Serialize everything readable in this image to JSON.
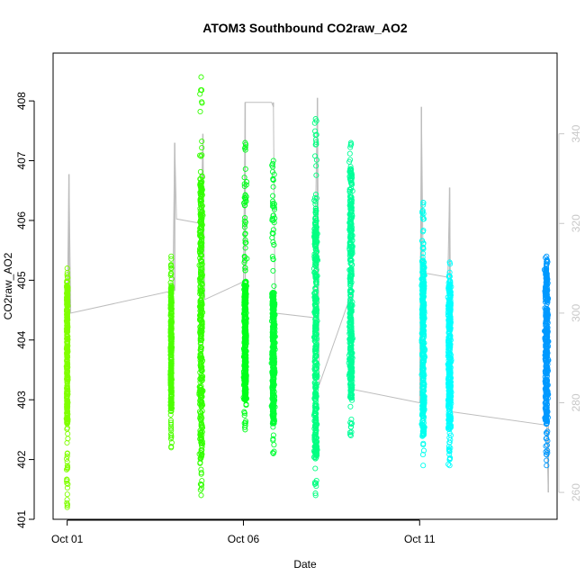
{
  "chart_data": {
    "type": "scatter",
    "title": "ATOM3 Southbound CO2raw_AO2",
    "xlabel": "Date",
    "ylabel": "CO2raw_AO2",
    "x_ticks": [
      {
        "day": 1,
        "label": "Oct 01"
      },
      {
        "day": 6,
        "label": "Oct 06"
      },
      {
        "day": 11,
        "label": "Oct 11"
      }
    ],
    "xlim": [
      0.6,
      14.9
    ],
    "ylim": [
      401.0,
      408.8
    ],
    "y_ticks": [
      401,
      402,
      403,
      404,
      405,
      406,
      407,
      408
    ],
    "y2lim": [
      254.0,
      358.0
    ],
    "y2_ticks": [
      260,
      280,
      300,
      320,
      340
    ],
    "y2_color": "#c8c8c8",
    "secondary_series": {
      "type": "line",
      "axis": "right",
      "color": "#bdbdbd",
      "points": [
        {
          "x": 1.0,
          "y": 299.7
        },
        {
          "x": 1.05,
          "y": 331.0
        },
        {
          "x": 1.1,
          "y": 300.0
        },
        {
          "x": 4.0,
          "y": 305.0
        },
        {
          "x": 4.05,
          "y": 338.0
        },
        {
          "x": 4.1,
          "y": 321.0
        },
        {
          "x": 4.8,
          "y": 320.0
        },
        {
          "x": 4.85,
          "y": 340.0
        },
        {
          "x": 4.9,
          "y": 303.0
        },
        {
          "x": 6.0,
          "y": 307.0
        },
        {
          "x": 6.05,
          "y": 347.0
        },
        {
          "x": 6.1,
          "y": 347.0
        },
        {
          "x": 6.8,
          "y": 347.0
        },
        {
          "x": 6.85,
          "y": 346.0
        },
        {
          "x": 6.9,
          "y": 300.0
        },
        {
          "x": 8.0,
          "y": 299.0
        },
        {
          "x": 8.1,
          "y": 348.0
        },
        {
          "x": 8.15,
          "y": 284.0
        },
        {
          "x": 9.0,
          "y": 303.0
        },
        {
          "x": 9.05,
          "y": 304.0
        },
        {
          "x": 9.1,
          "y": 283.0
        },
        {
          "x": 11.0,
          "y": 280.0
        },
        {
          "x": 11.05,
          "y": 346.0
        },
        {
          "x": 11.1,
          "y": 309.0
        },
        {
          "x": 11.8,
          "y": 308.0
        },
        {
          "x": 11.85,
          "y": 328.0
        },
        {
          "x": 11.9,
          "y": 278.0
        },
        {
          "x": 14.6,
          "y": 275.0
        },
        {
          "x": 14.65,
          "y": 260.0
        }
      ]
    },
    "series": [
      {
        "x": 1.0,
        "x_spread": 0.03,
        "ymin": 401.2,
        "ymax": 405.2,
        "core_min": 402.6,
        "core_max": 405.0,
        "color": "#80ff00"
      },
      {
        "x": 3.95,
        "x_spread": 0.03,
        "ymin": 402.2,
        "ymax": 405.4,
        "core_min": 402.8,
        "core_max": 404.9,
        "color": "#4dff00"
      },
      {
        "x": 4.8,
        "x_spread": 0.07,
        "ymin": 401.4,
        "ymax": 408.4,
        "core_min": 402.0,
        "core_max": 406.8,
        "color": "#33ff00"
      },
      {
        "x": 6.05,
        "x_spread": 0.06,
        "ymin": 402.5,
        "ymax": 407.3,
        "core_min": 403.0,
        "core_max": 405.0,
        "color": "#00ff1a"
      },
      {
        "x": 6.85,
        "x_spread": 0.07,
        "ymin": 402.1,
        "ymax": 407.0,
        "core_min": 402.6,
        "core_max": 404.8,
        "color": "#00ff33"
      },
      {
        "x": 8.05,
        "x_spread": 0.07,
        "ymin": 401.4,
        "ymax": 407.7,
        "core_min": 402.0,
        "core_max": 406.2,
        "color": "#00ff80"
      },
      {
        "x": 9.05,
        "x_spread": 0.07,
        "ymin": 402.4,
        "ymax": 407.3,
        "core_min": 403.0,
        "core_max": 406.9,
        "color": "#00ff99"
      },
      {
        "x": 11.1,
        "x_spread": 0.06,
        "ymin": 401.9,
        "ymax": 406.3,
        "core_min": 402.4,
        "core_max": 405.3,
        "color": "#00ffee"
      },
      {
        "x": 11.85,
        "x_spread": 0.07,
        "ymin": 401.9,
        "ymax": 405.3,
        "core_min": 402.5,
        "core_max": 405.0,
        "color": "#00ffff"
      },
      {
        "x": 14.6,
        "x_spread": 0.07,
        "ymin": 401.9,
        "ymax": 405.4,
        "core_min": 402.6,
        "core_max": 405.2,
        "color": "#0099ff"
      }
    ],
    "grid": false
  }
}
